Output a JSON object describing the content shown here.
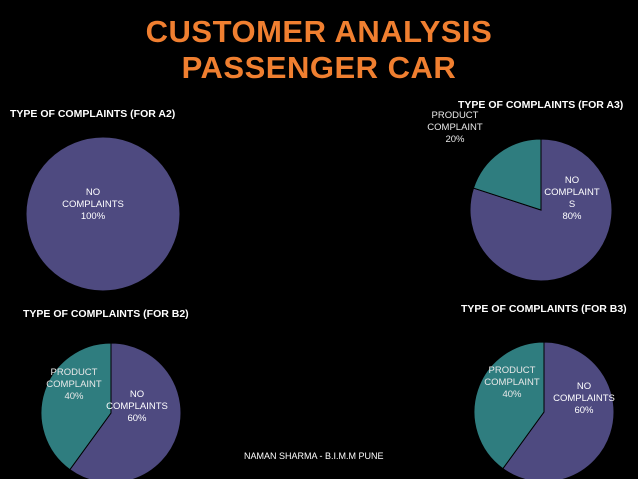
{
  "header": {
    "title_line1": "CUSTOMER ANALYSIS",
    "title_line2": "PASSENGER CAR"
  },
  "colors": {
    "no_complaints": "#4e4a80",
    "product_complaint": "#2f7d7f",
    "title": "#f07f30"
  },
  "chart_data": [
    {
      "type": "pie",
      "title": "TYPE OF COMPLAINTS (FOR A2)",
      "slices": [
        {
          "label": "NO COMPLAINTS",
          "value": 100,
          "display": [
            "NO",
            "COMPLAINTS",
            "100%"
          ]
        }
      ]
    },
    {
      "type": "pie",
      "title": "TYPE OF COMPLAINTS (FOR A3)",
      "slices": [
        {
          "label": "NO COMPLAINTS",
          "value": 80,
          "display": [
            "NO",
            "COMPLAINT",
            "S",
            "80%"
          ]
        },
        {
          "label": "PRODUCT COMPLAINT",
          "value": 20,
          "display": [
            "PRODUCT",
            "COMPLAINT",
            "20%"
          ]
        }
      ]
    },
    {
      "type": "pie",
      "title": "TYPE OF COMPLAINTS (FOR B2)",
      "slices": [
        {
          "label": "NO COMPLAINTS",
          "value": 60,
          "display": [
            "NO",
            "COMPLAINTS",
            "60%"
          ]
        },
        {
          "label": "PRODUCT COMPLAINT",
          "value": 40,
          "display": [
            "PRODUCT",
            "COMPLAINT",
            "40%"
          ]
        }
      ]
    },
    {
      "type": "pie",
      "title": "TYPE OF COMPLAINTS (FOR B3)",
      "slices": [
        {
          "label": "NO COMPLAINTS",
          "value": 60,
          "display": [
            "NO",
            "COMPLAINTS",
            "60%"
          ]
        },
        {
          "label": "PRODUCT COMPLAINT",
          "value": 40,
          "display": [
            "PRODUCT",
            "COMPLAINT",
            "40%"
          ]
        }
      ]
    }
  ],
  "footer": {
    "credit": "NAMAN SHARMA - B.I.M.M PUNE"
  }
}
